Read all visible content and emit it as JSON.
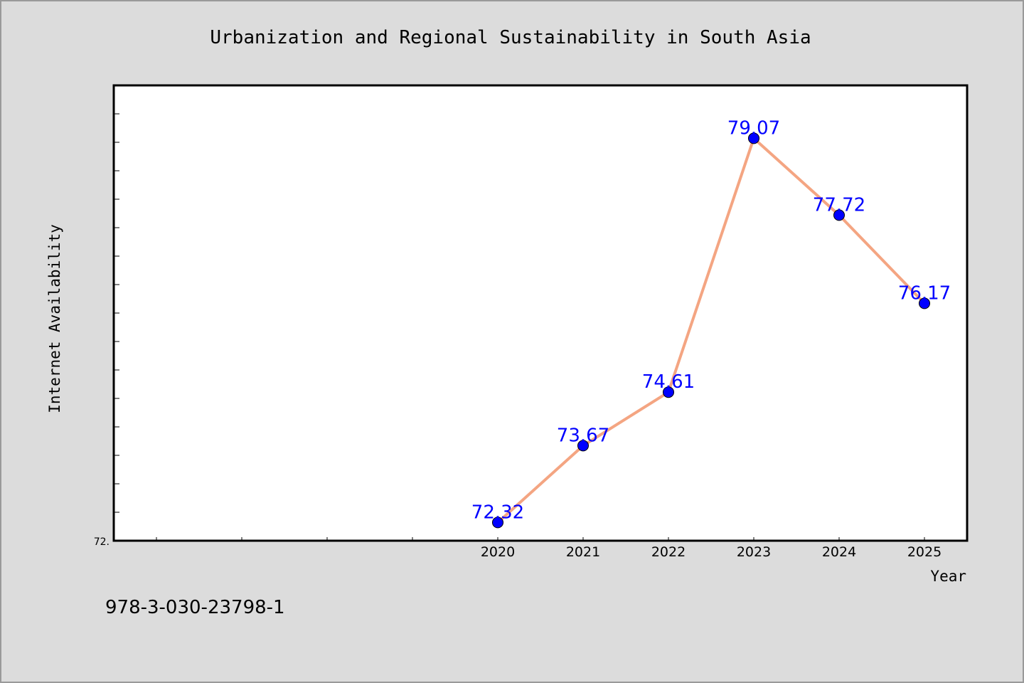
{
  "chart_data": {
    "type": "line",
    "title": "Urbanization and Regional Sustainability in South Asia",
    "xlabel": "Year",
    "ylabel": "Internet Availability",
    "x": [
      "2020",
      "2021",
      "2022",
      "2023",
      "2024",
      "2025"
    ],
    "series": [
      {
        "values": [
          72.32,
          73.67,
          74.61,
          79.07,
          77.72,
          76.17
        ],
        "point_labels": [
          "72.32",
          "73.67",
          "74.61",
          "79.07",
          "77.72",
          "76.17"
        ]
      }
    ],
    "ylim": [
      72.0,
      80.0
    ],
    "y_tick_labels": [
      "72."
    ],
    "grid": false,
    "legend": "none",
    "colors": {
      "line": "#f4a582",
      "marker": "#0000ff",
      "label": "#0000ff",
      "plot_bg": "#ffffff",
      "figure_bg": "#dcdcdc"
    }
  },
  "footer": {
    "isbn": "978-3-030-23798-1"
  }
}
